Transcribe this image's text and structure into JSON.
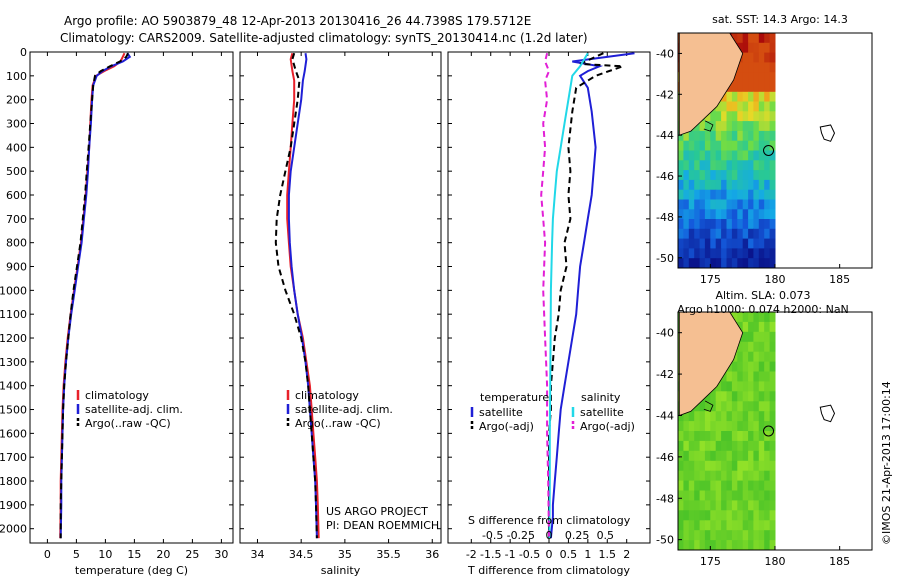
{
  "header": {
    "line1": "Argo profile: AO 5903879_48 12-Apr-2013 20130416_26 44.7398S 179.5712E",
    "line2": "Climatology: CARS2009. Satellite-adjusted climatology: synTS_20130414.nc (1.2d later)"
  },
  "colors": {
    "climatology": "#e8212a",
    "satellite": "#1f1fd6",
    "argo": "#000000",
    "sal_sat": "#21d8e8",
    "sal_argo": "#e21fd6",
    "land": "#f5bf92"
  },
  "depth_ticks": [
    "0",
    "100",
    "200",
    "300",
    "400",
    "500",
    "600",
    "700",
    "800",
    "900",
    "1000",
    "1100",
    "1200",
    "1300",
    "1400",
    "1500",
    "1600",
    "1700",
    "1800",
    "1900",
    "2000"
  ],
  "chart_data": [
    {
      "type": "line",
      "id": "temperature",
      "xlabel": "temperature (deg C)",
      "xlim": [
        -3,
        32
      ],
      "ylim": [
        2060,
        0
      ],
      "xticks": [
        "0",
        "5",
        "10",
        "15",
        "20",
        "25",
        "30"
      ],
      "legend": [
        "climatology",
        "satellite-adj. clim.",
        "Argo(..raw -QC)"
      ],
      "series": [
        {
          "name": "climatology",
          "x": [
            13.3,
            13.0,
            12.6,
            11.5,
            9.8,
            8.4,
            7.8,
            7.6,
            7.4,
            7.2,
            6.9,
            6.6,
            6.2,
            5.8,
            5.2,
            4.6,
            4.0,
            3.5,
            3.1,
            2.8,
            2.6,
            2.5,
            2.3,
            2.3,
            2.2
          ],
          "y": [
            5,
            20,
            40,
            60,
            80,
            100,
            140,
            200,
            300,
            400,
            500,
            600,
            700,
            800,
            900,
            1000,
            1100,
            1200,
            1300,
            1400,
            1500,
            1600,
            1800,
            1900,
            2040
          ]
        },
        {
          "name": "satellite-adj. clim.",
          "x": [
            13.8,
            14.2,
            13.0,
            11.0,
            9.5,
            8.5,
            7.9,
            7.7,
            7.5,
            7.2,
            7.0,
            6.7,
            6.3,
            5.9,
            5.3,
            4.7,
            4.1,
            3.6,
            3.2,
            2.9,
            2.7,
            2.6,
            2.4,
            2.4,
            2.3
          ],
          "y": [
            5,
            20,
            40,
            60,
            80,
            100,
            140,
            200,
            300,
            400,
            500,
            600,
            700,
            800,
            900,
            1000,
            1100,
            1200,
            1300,
            1400,
            1500,
            1600,
            1800,
            1900,
            2040
          ]
        },
        {
          "name": "Argo(..raw -QC)",
          "x": [
            13.9,
            13.6,
            12.5,
            10.8,
            9.2,
            8.2,
            7.9,
            7.7,
            7.4,
            7.1,
            6.8,
            6.5,
            6.1,
            5.7,
            5.1,
            4.5,
            4.0,
            3.6,
            3.2,
            2.9,
            2.7,
            2.6,
            2.4,
            2.3,
            2.3
          ],
          "y": [
            5,
            20,
            40,
            60,
            80,
            100,
            140,
            200,
            300,
            400,
            500,
            600,
            700,
            800,
            900,
            1000,
            1100,
            1200,
            1300,
            1400,
            1500,
            1600,
            1800,
            1900,
            2040
          ]
        }
      ]
    },
    {
      "type": "line",
      "id": "salinity",
      "xlabel": "salinity",
      "xlim": [
        33.8,
        36.1
      ],
      "ylim": [
        2060,
        0
      ],
      "xticks": [
        "34",
        "34.5",
        "35",
        "35.5",
        "36"
      ],
      "legend": [
        "climatology",
        "satellite-adj. clim.",
        "Argo(..raw -QC)"
      ],
      "annotation": [
        "US ARGO PROJECT",
        "PI: DEAN ROEMMICH"
      ],
      "series": [
        {
          "name": "climatology",
          "x": [
            34.4,
            34.38,
            34.4,
            34.42,
            34.42,
            34.4,
            34.38,
            34.36,
            34.34,
            34.34,
            34.36,
            34.38,
            34.42,
            34.46,
            34.52,
            34.56,
            34.6,
            34.62,
            34.64,
            34.66,
            34.68,
            34.69,
            34.7
          ],
          "y": [
            5,
            30,
            80,
            120,
            200,
            300,
            400,
            500,
            600,
            700,
            800,
            900,
            1000,
            1100,
            1200,
            1300,
            1400,
            1500,
            1600,
            1700,
            1800,
            1900,
            2040
          ]
        },
        {
          "name": "satellite-adj. clim.",
          "x": [
            34.55,
            34.56,
            34.54,
            34.52,
            34.5,
            34.46,
            34.42,
            34.38,
            34.36,
            34.36,
            34.37,
            34.39,
            34.42,
            34.46,
            34.51,
            34.55,
            34.58,
            34.6,
            34.62,
            34.64,
            34.66,
            34.67,
            34.68
          ],
          "y": [
            5,
            30,
            80,
            120,
            200,
            300,
            400,
            500,
            600,
            700,
            800,
            900,
            1000,
            1100,
            1200,
            1300,
            1400,
            1500,
            1600,
            1700,
            1800,
            1900,
            2040
          ]
        },
        {
          "name": "Argo(..raw -QC)",
          "x": [
            34.42,
            34.4,
            34.44,
            34.48,
            34.46,
            34.42,
            34.38,
            34.32,
            34.26,
            34.22,
            34.21,
            34.24,
            34.32,
            34.42,
            34.5,
            34.55,
            34.58,
            34.6,
            34.62,
            34.64,
            34.66,
            34.67,
            34.68
          ],
          "y": [
            5,
            30,
            80,
            120,
            200,
            300,
            400,
            500,
            600,
            700,
            800,
            900,
            1000,
            1100,
            1200,
            1300,
            1400,
            1500,
            1600,
            1700,
            1800,
            1900,
            2040
          ]
        }
      ]
    },
    {
      "type": "line",
      "id": "difference",
      "xlabel": "T difference from climatology",
      "xlabel_top": "S difference from climatology",
      "xlim": [
        -2.6,
        2.6
      ],
      "ylim": [
        2060,
        0
      ],
      "xticks": [
        "-2",
        "-1.5",
        "-1",
        "-0.5",
        "0",
        "0.5",
        "1",
        "1.5",
        "2"
      ],
      "s_ticks": [
        "-0.5",
        "-0.25",
        "0",
        "0.25",
        "0.5"
      ],
      "legend_titles": [
        "temperature",
        "salinity"
      ],
      "legend": [
        "satellite",
        "Argo(-adj)",
        "satellite",
        "Argo(-adj)"
      ],
      "series": [
        {
          "name": "satellite",
          "x": [
            2.2,
            0.6,
            1.3,
            1.0,
            0.8,
            1.0,
            1.1,
            1.2,
            1.1,
            1.0,
            0.9,
            0.8,
            0.75,
            0.7,
            0.6,
            0.5,
            0.4,
            0.3,
            0.25,
            0.2,
            0.15,
            0.1,
            0.1,
            0.05
          ],
          "y": [
            5,
            40,
            60,
            80,
            100,
            150,
            250,
            400,
            600,
            700,
            800,
            900,
            1000,
            1100,
            1200,
            1300,
            1400,
            1500,
            1600,
            1700,
            1800,
            1900,
            1950,
            2040
          ]
        },
        {
          "name": "Argo(-adj)",
          "x": [
            1.4,
            0.8,
            1.9,
            1.2,
            0.7,
            0.6,
            0.5,
            0.55,
            0.5,
            0.55,
            0.4,
            0.45,
            0.3,
            0.25,
            0.15,
            0.1,
            0.05,
            0.05,
            0.0,
            0.0,
            0.0,
            0.0,
            0.0,
            0.0
          ],
          "y": [
            5,
            50,
            60,
            100,
            150,
            250,
            400,
            500,
            600,
            700,
            800,
            900,
            1000,
            1100,
            1200,
            1300,
            1400,
            1500,
            1600,
            1700,
            1800,
            1900,
            2000,
            2040
          ]
        },
        {
          "name": "satellite",
          "x": [
            1.0,
            0.8,
            0.6,
            0.5,
            0.4,
            0.3,
            0.2,
            0.15,
            0.1,
            0.08,
            0.05,
            0.04,
            0.03,
            0.02,
            0.02,
            0.01
          ],
          "y": [
            5,
            60,
            100,
            200,
            300,
            400,
            500,
            600,
            700,
            800,
            1000,
            1200,
            1400,
            1600,
            1800,
            2040
          ]
        },
        {
          "name": "Argo(-adj)",
          "x": [
            -0.05,
            -0.1,
            0.0,
            -0.1,
            -0.05,
            -0.15,
            -0.1,
            -0.15,
            -0.2,
            -0.15,
            -0.1,
            -0.15,
            -0.1,
            -0.05,
            -0.05,
            -0.02,
            0.0
          ],
          "y": [
            5,
            40,
            80,
            120,
            200,
            300,
            400,
            500,
            600,
            700,
            800,
            1000,
            1200,
            1400,
            1600,
            1800,
            2040
          ]
        }
      ]
    },
    {
      "type": "heatmap",
      "id": "sst_map",
      "title": "sat. SST: 14.3  Argo: 14.3",
      "xticks": [
        "175",
        "180",
        "185"
      ],
      "yticks": [
        "-40",
        "-42",
        "-44",
        "-46",
        "-48",
        "-50"
      ],
      "xlim": [
        172.5,
        187.5
      ],
      "ylim": [
        -50.5,
        -39
      ]
    },
    {
      "type": "heatmap",
      "id": "sla_map",
      "title": [
        "Altim. SLA: 0.073",
        "Argo h1000: 0.074 h2000: NaN"
      ],
      "xticks": [
        "175",
        "180",
        "185"
      ],
      "yticks": [
        "-40",
        "-42",
        "-44",
        "-46",
        "-48",
        "-50"
      ],
      "xlim": [
        172.5,
        187.5
      ],
      "ylim": [
        -50.5,
        -39
      ]
    }
  ],
  "footer": {
    "stamp": "©IMOS 21-Apr-2013 17:00:14"
  }
}
